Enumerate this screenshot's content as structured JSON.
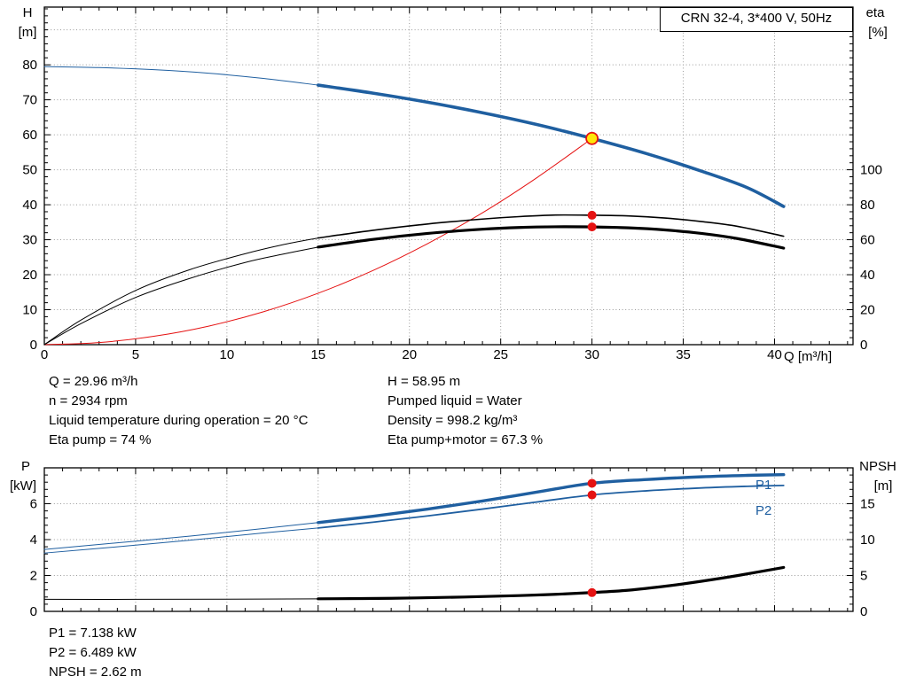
{
  "title_box": "CRN 32-4, 3*400 V, 50Hz",
  "info_top_left": [
    "Q = 29.96 m³/h",
    "n = 2934 rpm",
    "Liquid temperature during operation = 20 °C",
    "Eta pump = 74 %"
  ],
  "info_top_right": [
    "H = 58.95 m",
    "Pumped liquid = Water",
    "Density = 998.2 kg/m³",
    "Eta pump+motor = 67.3 %"
  ],
  "info_bottom": [
    "P1 = 7.138 kW",
    "P2 = 6.489 kW",
    "NPSH = 2.62 m"
  ],
  "duty_point": {
    "q_m3h": 29.96,
    "h_m": 58.95,
    "n_rpm": 2934,
    "eta_pump_pct": 74,
    "eta_pump_motor_pct": 67.3,
    "p1_kw": 7.138,
    "p2_kw": 6.489,
    "npsh_m": 2.62
  },
  "chart_data": [
    {
      "type": "line",
      "name": "qh-eta-chart",
      "title": "CRN 32-4, 3*400 V, 50Hz",
      "x": {
        "title": "Q [m³/h]",
        "min": 0,
        "max": 44.3,
        "majors": [
          0,
          5,
          10,
          15,
          20,
          25,
          30,
          35,
          40
        ],
        "minor_step": 1,
        "show_labels": true
      },
      "y_left": {
        "title": "H",
        "unit": "[m]",
        "min": 0,
        "max": 96.5,
        "majors": [
          0,
          10,
          20,
          30,
          40,
          50,
          60,
          70,
          80
        ],
        "grid": [
          10,
          20,
          30,
          40,
          50,
          60,
          70,
          80,
          90
        ],
        "minor_step": 2
      },
      "y_right": {
        "title": "eta",
        "unit": "[%]",
        "factor": 0.5,
        "majors": [
          0,
          20,
          40,
          60,
          80,
          100
        ],
        "minor_step": 4
      },
      "series": [
        {
          "name": "qh-curve-lead",
          "color": "#1f5fa0",
          "width": 1,
          "points": [
            [
              0,
              79.5
            ],
            [
              3,
              79.2
            ],
            [
              6,
              78.6
            ],
            [
              9,
              77.6
            ],
            [
              12,
              76.1
            ],
            [
              15,
              74.2
            ]
          ]
        },
        {
          "name": "qh-curve",
          "color": "#1f5fa0",
          "width": 3.6,
          "points": [
            [
              15,
              74.2
            ],
            [
              18,
              71.9
            ],
            [
              21,
              69.3
            ],
            [
              24,
              66.3
            ],
            [
              27,
              62.9
            ],
            [
              30,
              58.95
            ],
            [
              33,
              54.6
            ],
            [
              36,
              49.6
            ],
            [
              38.5,
              44.9
            ],
            [
              40.5,
              39.5
            ]
          ]
        },
        {
          "name": "system-curve",
          "color": "#e51212",
          "width": 1,
          "points": [
            [
              0,
              0
            ],
            [
              3,
              0.6
            ],
            [
              6,
              2.4
            ],
            [
              9,
              5.3
            ],
            [
              12,
              9.4
            ],
            [
              15,
              14.7
            ],
            [
              18,
              21.2
            ],
            [
              21,
              28.9
            ],
            [
              24,
              37.7
            ],
            [
              27,
              47.8
            ],
            [
              30,
              58.95
            ]
          ]
        },
        {
          "name": "eta-pump-lead",
          "color": "#000000",
          "width": 1,
          "points": [
            [
              0,
              0
            ],
            [
              2,
              7
            ],
            [
              5,
              15.5
            ],
            [
              8,
              21.5
            ],
            [
              11,
              26
            ],
            [
              13,
              28.5
            ],
            [
              15,
              30.5
            ]
          ]
        },
        {
          "name": "eta-pump-curve",
          "color": "#000000",
          "width": 1.6,
          "points": [
            [
              15,
              30.5
            ],
            [
              18,
              32.7
            ],
            [
              21,
              34.5
            ],
            [
              24,
              35.9
            ],
            [
              26,
              36.6
            ],
            [
              28,
              37.05
            ],
            [
              30,
              37.0
            ],
            [
              32,
              36.8
            ],
            [
              34,
              36.2
            ],
            [
              36,
              35.2
            ],
            [
              38,
              33.8
            ],
            [
              40.5,
              31.0
            ]
          ]
        },
        {
          "name": "eta-pump-motor-lead",
          "color": "#000000",
          "width": 1,
          "points": [
            [
              0,
              0
            ],
            [
              2,
              6
            ],
            [
              5,
              13.5
            ],
            [
              8,
              19
            ],
            [
              11,
              23.5
            ],
            [
              13,
              25.8
            ],
            [
              15,
              27.9
            ]
          ]
        },
        {
          "name": "eta-pump-motor-curve",
          "color": "#000000",
          "width": 3.2,
          "points": [
            [
              15,
              27.9
            ],
            [
              18,
              30.1
            ],
            [
              21,
              31.8
            ],
            [
              24,
              33.0
            ],
            [
              26,
              33.5
            ],
            [
              28,
              33.7
            ],
            [
              30,
              33.65
            ],
            [
              32,
              33.4
            ],
            [
              34,
              32.8
            ],
            [
              36,
              31.8
            ],
            [
              38,
              30.3
            ],
            [
              40.5,
              27.6
            ]
          ]
        }
      ],
      "markers": [
        {
          "name": "duty-point-marker",
          "q": 30,
          "v": 58.95,
          "r": 6.5,
          "fill": "#ffe60a",
          "stroke": "#e51212",
          "stroke_width": 1.8
        },
        {
          "name": "eta-pump-marker",
          "q": 30,
          "v": 37.0,
          "r": 5,
          "fill": "#e51212"
        },
        {
          "name": "eta-pump-motor-marker",
          "q": 30,
          "v": 33.65,
          "r": 5,
          "fill": "#e51212"
        }
      ],
      "labels": []
    },
    {
      "type": "line",
      "name": "power-npsh-chart",
      "title": "",
      "x": {
        "title": "",
        "min": 0,
        "max": 44.3,
        "majors": [
          0,
          5,
          10,
          15,
          20,
          25,
          30,
          35,
          40
        ],
        "minor_step": 1,
        "show_labels": false
      },
      "y_left": {
        "title": "P",
        "unit": "[kW]",
        "min": 0,
        "max": 8,
        "majors": [
          0,
          2,
          4,
          6
        ],
        "grid": [
          2,
          4,
          6
        ],
        "minor_step": 0.4
      },
      "y_right": {
        "title": "NPSH",
        "unit": "[m]",
        "factor": 0.4,
        "majors": [
          0,
          5,
          10,
          15
        ],
        "minor_step": 1
      },
      "series": [
        {
          "name": "p1-lead",
          "color": "#1f5fa0",
          "width": 1,
          "points": [
            [
              0,
              3.45
            ],
            [
              4,
              3.82
            ],
            [
              8,
              4.2
            ],
            [
              12,
              4.62
            ],
            [
              15,
              4.95
            ]
          ]
        },
        {
          "name": "p1-curve",
          "color": "#1f5fa0",
          "width": 3.4,
          "points": [
            [
              15,
              4.95
            ],
            [
              18,
              5.3
            ],
            [
              21,
              5.7
            ],
            [
              24,
              6.15
            ],
            [
              27,
              6.65
            ],
            [
              30,
              7.138
            ],
            [
              33,
              7.35
            ],
            [
              36,
              7.5
            ],
            [
              38.5,
              7.58
            ],
            [
              40.5,
              7.62
            ]
          ]
        },
        {
          "name": "p2-lead",
          "color": "#1f5fa0",
          "width": 1,
          "points": [
            [
              0,
              3.25
            ],
            [
              4,
              3.6
            ],
            [
              8,
              3.97
            ],
            [
              12,
              4.37
            ],
            [
              15,
              4.65
            ]
          ]
        },
        {
          "name": "p2-curve",
          "color": "#1f5fa0",
          "width": 1.8,
          "points": [
            [
              15,
              4.65
            ],
            [
              18,
              4.97
            ],
            [
              21,
              5.32
            ],
            [
              24,
              5.7
            ],
            [
              27,
              6.1
            ],
            [
              30,
              6.489
            ],
            [
              33,
              6.72
            ],
            [
              36,
              6.88
            ],
            [
              38.5,
              6.97
            ],
            [
              40.5,
              7.02
            ]
          ]
        },
        {
          "name": "npsh-lead",
          "color": "#000000",
          "width": 1,
          "points": [
            [
              0,
              0.67
            ],
            [
              5,
              0.67
            ],
            [
              10,
              0.68
            ],
            [
              15,
              0.7
            ]
          ]
        },
        {
          "name": "npsh-curve",
          "color": "#000000",
          "width": 3.2,
          "points": [
            [
              15,
              0.7
            ],
            [
              19,
              0.73
            ],
            [
              23,
              0.8
            ],
            [
              26,
              0.88
            ],
            [
              28,
              0.95
            ],
            [
              30,
              1.048
            ],
            [
              32,
              1.18
            ],
            [
              34,
              1.4
            ],
            [
              36,
              1.68
            ],
            [
              38,
              2.0
            ],
            [
              40.5,
              2.45
            ]
          ]
        }
      ],
      "markers": [
        {
          "name": "p1-marker",
          "q": 30,
          "v": 7.138,
          "r": 5,
          "fill": "#e51212"
        },
        {
          "name": "p2-marker",
          "q": 30,
          "v": 6.489,
          "r": 5,
          "fill": "#e51212"
        },
        {
          "name": "npsh-marker",
          "q": 30,
          "v": 1.048,
          "r": 5,
          "fill": "#e51212"
        }
      ],
      "labels": [
        {
          "text": "P1",
          "q": 39.4,
          "v": 7.05,
          "color": "#1f5fa0"
        },
        {
          "text": "P2",
          "q": 39.4,
          "v": 5.62,
          "color": "#1f5fa0"
        }
      ]
    }
  ]
}
